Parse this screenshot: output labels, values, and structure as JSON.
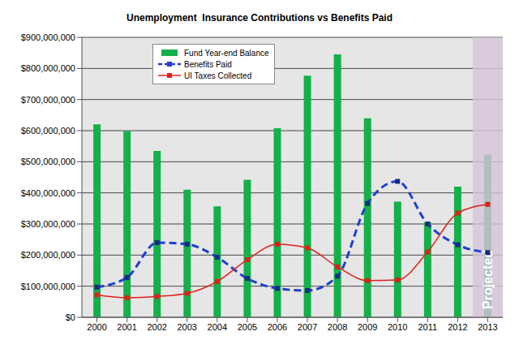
{
  "chart_data": {
    "type": "bar",
    "title": "Unemployment  Insurance Contributions vs Benefits Paid",
    "categories": [
      "2000",
      "2001",
      "2002",
      "2003",
      "2004",
      "2005",
      "2006",
      "2007",
      "2008",
      "2009",
      "2010",
      "2011",
      "2012",
      "2013"
    ],
    "series": [
      {
        "name": "Fund Year-end Balance",
        "type": "bar",
        "color": "#14b04a",
        "values": [
          620000000,
          598000000,
          535000000,
          410000000,
          357000000,
          442000000,
          608000000,
          777000000,
          845000000,
          640000000,
          372000000,
          305000000,
          420000000,
          523000000
        ]
      },
      {
        "name": "Benefits Paid",
        "type": "line",
        "color": "#1f3fd0",
        "marker": "square",
        "line_style": "dashed",
        "values": [
          97000000,
          128000000,
          240000000,
          235000000,
          193000000,
          125000000,
          93000000,
          86000000,
          132000000,
          366000000,
          437000000,
          300000000,
          233000000,
          208000000
        ]
      },
      {
        "name": "UI Taxes Collected",
        "type": "line",
        "color": "#e0201b",
        "marker": "square",
        "line_style": "solid",
        "values": [
          72000000,
          63000000,
          67000000,
          77000000,
          115000000,
          185000000,
          235000000,
          223000000,
          162000000,
          118000000,
          120000000,
          210000000,
          335000000,
          363000000
        ]
      }
    ],
    "ylim": [
      0,
      900000000
    ],
    "yticks": [
      {
        "value": 0,
        "label": "$0"
      },
      {
        "value": 100000000,
        "label": "$100,000,000"
      },
      {
        "value": 200000000,
        "label": "$200,000,000"
      },
      {
        "value": 300000000,
        "label": "$300,000,000"
      },
      {
        "value": 400000000,
        "label": "$400,000,000"
      },
      {
        "value": 500000000,
        "label": "$500,000,000"
      },
      {
        "value": 600000000,
        "label": "$600,000,000"
      },
      {
        "value": 700000000,
        "label": "$700,000,000"
      },
      {
        "value": 800000000,
        "label": "$800,000,000"
      },
      {
        "value": 900000000,
        "label": "$900,000,000"
      }
    ],
    "grid": true,
    "annotations": [
      {
        "text": "Projected",
        "category": "2013"
      }
    ]
  }
}
